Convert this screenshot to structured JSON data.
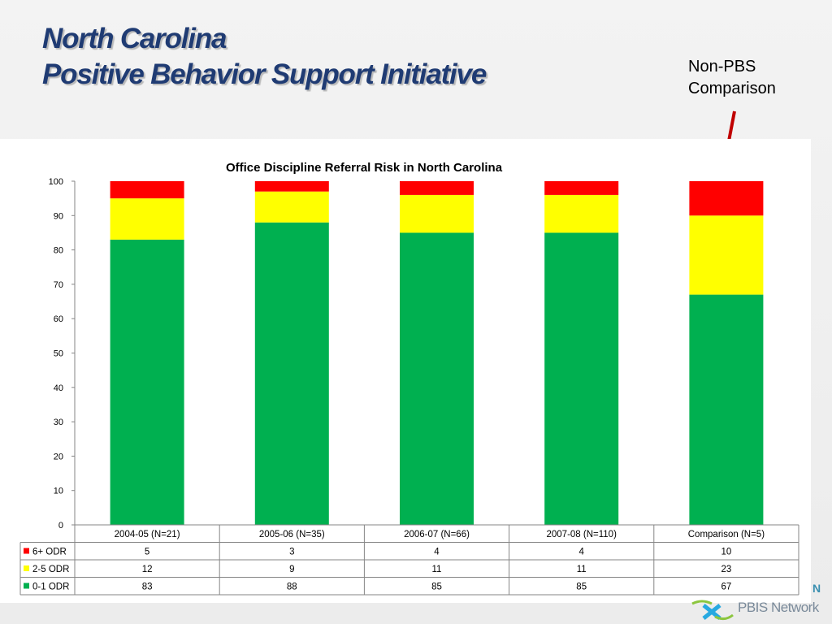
{
  "slide": {
    "title_line1": "North Carolina",
    "title_line2": "Positive Behavior Support Initiative",
    "callout_line1": "Non-PBS",
    "callout_line2": "Comparison",
    "logo_text": "PBIS Network",
    "badge": "N"
  },
  "chart_data": {
    "type": "bar",
    "stacked": true,
    "title": "Office Discipline Referral Risk in North Carolina",
    "xlabel": "",
    "ylabel": "",
    "ylim": [
      0,
      100
    ],
    "yticks": [
      0,
      10,
      20,
      30,
      40,
      50,
      60,
      70,
      80,
      90,
      100
    ],
    "categories": [
      "2004-05 (N=21)",
      "2005-06 (N=35)",
      "2006-07 (N=66)",
      "2007-08 (N=110)",
      "Comparison (N=5)"
    ],
    "series": [
      {
        "name": "6+ ODR",
        "color": "#ff0000",
        "values": [
          5,
          3,
          4,
          4,
          10
        ]
      },
      {
        "name": "2-5 ODR",
        "color": "#ffff00",
        "values": [
          12,
          9,
          11,
          11,
          23
        ]
      },
      {
        "name": "0-1 ODR",
        "color": "#00b050",
        "values": [
          83,
          88,
          85,
          85,
          67
        ]
      }
    ],
    "stack_order_bottom_to_top": [
      "0-1 ODR",
      "2-5 ODR",
      "6+ ODR"
    ],
    "data_table": true,
    "grid": false
  },
  "colors": {
    "title": "#1f3b73",
    "arrow": "#c00000"
  }
}
